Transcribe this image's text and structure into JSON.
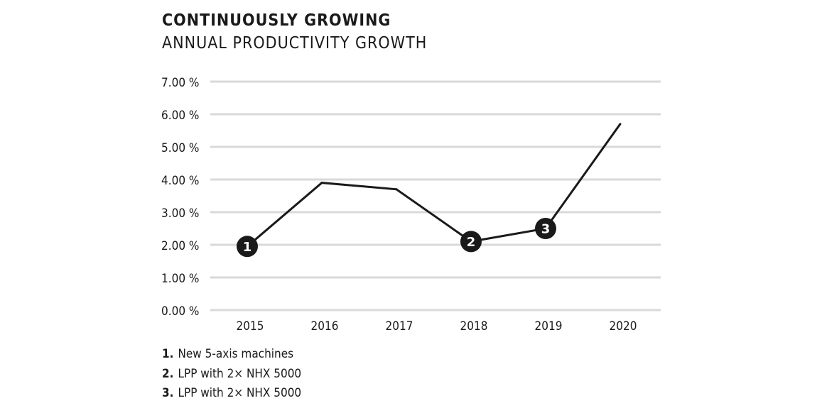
{
  "chart_data": {
    "type": "line",
    "title": "CONTINUOUSLY GROWING",
    "subtitle": "ANNUAL PRODUCTIVITY GROWTH",
    "xlabel": "",
    "ylabel": "",
    "categories": [
      "2015",
      "2016",
      "2017",
      "2018",
      "2019",
      "2020"
    ],
    "series": [
      {
        "name": "Annual productivity growth",
        "values": [
          1.95,
          3.9,
          3.7,
          2.1,
          2.5,
          5.7
        ]
      }
    ],
    "ylim": [
      0,
      7
    ],
    "yticks": [
      0,
      1,
      2,
      3,
      4,
      5,
      6,
      7
    ],
    "ytick_labels": [
      "0.00 %",
      "1.00 %",
      "2.00 %",
      "3.00 %",
      "4.00 %",
      "5.00 %",
      "6.00 %",
      "7.00 %"
    ],
    "grid": true,
    "annotations": [
      {
        "label": "1",
        "category": "2015",
        "value": 1.95
      },
      {
        "label": "2",
        "category": "2018",
        "value": 2.1
      },
      {
        "label": "3",
        "category": "2019",
        "value": 2.5
      }
    ],
    "colors": {
      "line": "#1a1a1a",
      "grid": "#d9d9d9",
      "marker": "#1a1a1a",
      "marker_text": "#ffffff"
    }
  },
  "legend": [
    {
      "num": "1.",
      "text": "New 5-axis machines"
    },
    {
      "num": "2.",
      "text": "LPP with 2× NHX 5000"
    },
    {
      "num": "3.",
      "text": "LPP with 2× NHX 5000"
    }
  ]
}
